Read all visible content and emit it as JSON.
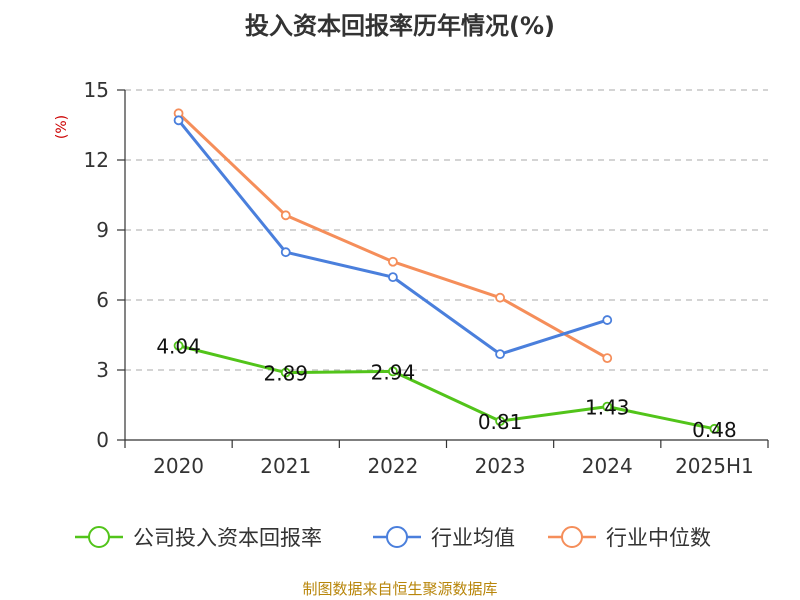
{
  "chart_data": {
    "type": "line",
    "title": "投入资本回报率历年情况(%)",
    "ylabel": "(%)",
    "xlabel": "",
    "categories": [
      "2020",
      "2021",
      "2022",
      "2023",
      "2024",
      "2025H1"
    ],
    "ylim": [
      0,
      15
    ],
    "yticks": [
      0,
      3,
      6,
      9,
      12,
      15
    ],
    "grid": true,
    "legend": "bottom",
    "series": [
      {
        "name": "公司投入资本回报率",
        "color": "#52c41a",
        "values": [
          4.04,
          2.89,
          2.94,
          0.81,
          1.43,
          0.48
        ],
        "labels": [
          "4.04",
          "2.89",
          "2.94",
          "0.81",
          "1.43",
          "0.48"
        ]
      },
      {
        "name": "行业均值",
        "color": "#4a7fdc",
        "values": [
          13.7,
          8.05,
          6.98,
          3.68,
          5.14,
          null
        ]
      },
      {
        "name": "行业中位数",
        "color": "#f58e5a",
        "values": [
          14.0,
          9.63,
          7.64,
          6.1,
          3.51,
          null
        ]
      }
    ]
  },
  "source": "制图数据来自恒生聚源数据库"
}
